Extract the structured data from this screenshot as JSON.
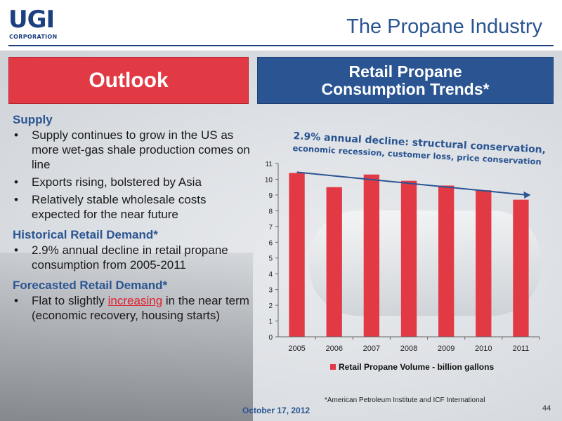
{
  "header": {
    "logo_main": "UGI",
    "logo_sub": "CORPORATION",
    "title": "The Propane Industry"
  },
  "outlook": {
    "heading": "Outlook"
  },
  "retail_box": {
    "heading": "Retail Propane\nConsumption Trends*"
  },
  "supply": {
    "heading": "Supply",
    "bullets": [
      "Supply continues to grow in the US as more wet-gas shale production comes on line",
      "Exports rising, bolstered by Asia",
      "Relatively stable wholesale costs expected for the near future"
    ]
  },
  "historical": {
    "heading": "Historical Retail Demand*",
    "bullets": [
      "2.9% annual decline in retail propane consumption from 2005-2011"
    ]
  },
  "forecast": {
    "heading": "Forecasted Retail Demand*",
    "bullet_pre": "Flat to slightly ",
    "bullet_link": "increasing",
    "bullet_post": " in the near term (economic recovery, housing starts)"
  },
  "chart_note": {
    "line1": "2.9% annual decline: structural conservation,",
    "line2": "economic recession, customer loss, price conservation"
  },
  "chart_data": {
    "type": "bar",
    "categories": [
      "2005",
      "2006",
      "2007",
      "2008",
      "2009",
      "2010",
      "2011"
    ],
    "series": [
      {
        "name": "Retail Propane Volume - billion gallons",
        "values": [
          10.4,
          9.5,
          10.3,
          9.9,
          9.6,
          9.3,
          8.7
        ]
      }
    ],
    "trendline": {
      "start": 10.45,
      "end": 9.0
    },
    "ylim": [
      0,
      11
    ],
    "yticks": [
      0,
      1,
      2,
      3,
      4,
      5,
      6,
      7,
      8,
      9,
      10,
      11
    ],
    "legend": "bottom",
    "grid": false,
    "bar_color": "#e23a45",
    "trend_color": "#2a5592"
  },
  "footnote": "*American Petroleum Institute and ICF International",
  "date": "October 17, 2012",
  "page_number": "44"
}
